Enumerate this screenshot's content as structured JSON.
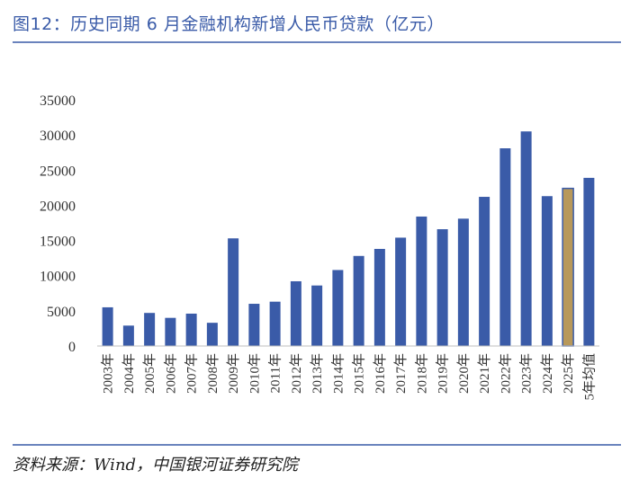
{
  "title": "图12：历史同期 6 月金融机构新增人民币贷款（亿元）",
  "source": "资料来源：Wind，中国银河证券研究院",
  "colors": {
    "accent": "#3A5BA8",
    "bar": "#3A5BA8",
    "highlight": "#B8985A",
    "rule": "#6A83BD"
  },
  "chart_data": {
    "type": "bar",
    "title": "",
    "xlabel": "",
    "ylabel": "",
    "ylim": [
      0,
      35000
    ],
    "yticks": [
      0,
      5000,
      10000,
      15000,
      20000,
      25000,
      30000,
      35000
    ],
    "grid": false,
    "categories": [
      "2003年",
      "2004年",
      "2005年",
      "2006年",
      "2007年",
      "2008年",
      "2009年",
      "2010年",
      "2011年",
      "2012年",
      "2013年",
      "2014年",
      "2015年",
      "2016年",
      "2017年",
      "2018年",
      "2019年",
      "2020年",
      "2021年",
      "2022年",
      "2023年",
      "2024年",
      "2025年",
      "5年均值"
    ],
    "values": [
      5500,
      2900,
      4700,
      4000,
      4600,
      3300,
      15300,
      6000,
      6300,
      9200,
      8600,
      10800,
      12800,
      13800,
      15400,
      18400,
      16600,
      18100,
      21200,
      28100,
      30500,
      21300,
      22400,
      23900
    ],
    "highlight": [
      "2025年"
    ]
  }
}
